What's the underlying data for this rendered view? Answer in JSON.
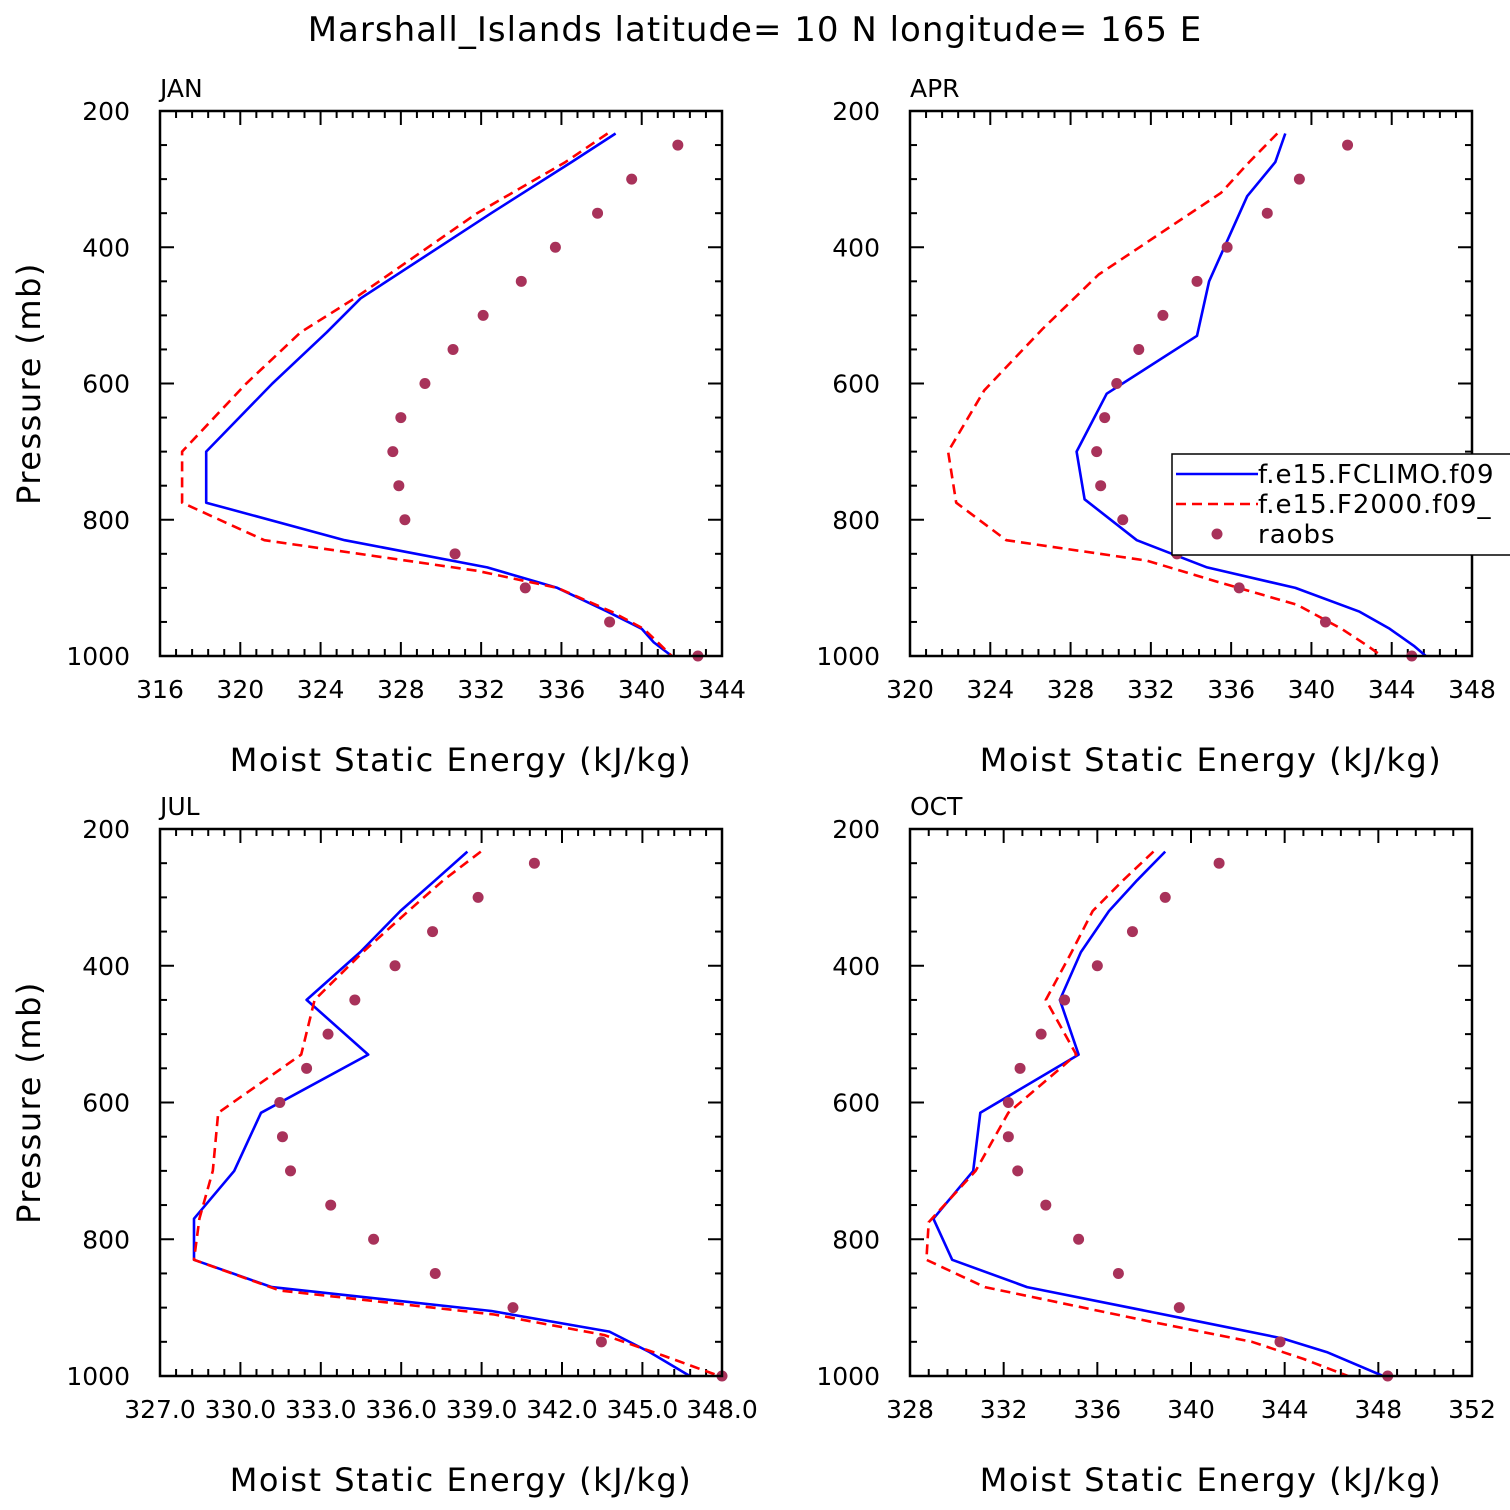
{
  "figure": {
    "title": "Marshall_Islands   latitude= 10 N longitude= 165 E"
  },
  "legend": {
    "entries": [
      {
        "name": "f.e15.FCLIMO.f09",
        "style": "solid",
        "color": "#0000ff"
      },
      {
        "name": "f.e15.F2000.f09_",
        "style": "dashed",
        "color": "#ff0000"
      },
      {
        "name": "raobs",
        "style": "marker",
        "color": "#a8325a"
      }
    ]
  },
  "chart_data": [
    {
      "type": "line",
      "title": "JAN",
      "xlabel": "Moist Static Energy (kJ/kg)",
      "ylabel": "Pressure (mb)",
      "xlim": [
        316,
        344
      ],
      "ylim": [
        1000,
        200
      ],
      "xticks": [
        316,
        320,
        324,
        328,
        332,
        336,
        340,
        344
      ],
      "xtick_labels": [
        "316",
        "320",
        "324",
        "328",
        "332",
        "336",
        "340",
        "344"
      ],
      "yticks": [
        200,
        400,
        600,
        800,
        1000
      ],
      "ytick_labels": [
        "200",
        "400",
        "600",
        "800",
        "1000"
      ],
      "show_ylabel": true,
      "series": [
        {
          "name": "f.e15.FCLIMO.f09",
          "style": "solid",
          "x": [
            338.7,
            336.5,
            332.5,
            326.0,
            324.3,
            321.6,
            318.3,
            318.3,
            325.2,
            332.3,
            335.8,
            338.3,
            340.0,
            340.6,
            341.5
          ],
          "y": [
            233,
            275,
            350,
            475,
            525,
            600,
            700,
            775,
            830,
            870,
            900,
            935,
            960,
            980,
            1000
          ]
        },
        {
          "name": "f.e15.F2000.f09_",
          "style": "dashed",
          "x": [
            338.3,
            336.2,
            331.8,
            325.7,
            323.0,
            320.3,
            317.1,
            317.1,
            321.2,
            331.8,
            335.8,
            338.5,
            340.1,
            340.8,
            341.5
          ],
          "y": [
            233,
            275,
            350,
            475,
            525,
            600,
            700,
            775,
            830,
            875,
            900,
            935,
            960,
            980,
            1000
          ]
        },
        {
          "name": "raobs",
          "style": "marker",
          "x": [
            341.8,
            339.5,
            337.8,
            335.7,
            334.0,
            332.1,
            330.6,
            329.2,
            328.0,
            327.6,
            327.9,
            328.2,
            330.7,
            334.2,
            338.4,
            342.8
          ],
          "y": [
            250,
            300,
            350,
            400,
            450,
            500,
            550,
            600,
            650,
            700,
            750,
            800,
            850,
            900,
            950,
            1000
          ]
        }
      ]
    },
    {
      "type": "line",
      "title": "APR",
      "xlabel": "Moist Static Energy (kJ/kg)",
      "ylabel": "",
      "xlim": [
        320,
        348
      ],
      "ylim": [
        1000,
        200
      ],
      "xticks": [
        320,
        324,
        328,
        332,
        336,
        340,
        344,
        348
      ],
      "xtick_labels": [
        "320",
        "324",
        "328",
        "332",
        "336",
        "340",
        "344",
        "348"
      ],
      "yticks": [
        200,
        400,
        600,
        800,
        1000
      ],
      "ytick_labels": [
        "200",
        "400",
        "600",
        "800",
        "1000"
      ],
      "show_ylabel": false,
      "series": [
        {
          "name": "f.e15.FCLIMO.f09",
          "style": "solid",
          "x": [
            338.7,
            338.2,
            336.8,
            334.9,
            334.3,
            329.8,
            328.3,
            328.7,
            331.3,
            334.8,
            339.2,
            342.4,
            343.9,
            345.1,
            345.7
          ],
          "y": [
            233,
            275,
            325,
            450,
            530,
            615,
            700,
            770,
            830,
            870,
            900,
            935,
            960,
            985,
            1000
          ]
        },
        {
          "name": "f.e15.F2000.f09_",
          "style": "dashed",
          "x": [
            338.3,
            336.9,
            335.5,
            329.4,
            326.6,
            323.7,
            321.9,
            322.3,
            324.8,
            331.8,
            335.2,
            339.3,
            341.5,
            342.8,
            343.5
          ],
          "y": [
            233,
            275,
            320,
            440,
            520,
            610,
            700,
            775,
            830,
            860,
            890,
            925,
            960,
            985,
            1000
          ]
        },
        {
          "name": "raobs",
          "style": "marker",
          "x": [
            341.8,
            339.4,
            337.8,
            335.8,
            334.3,
            332.6,
            331.4,
            330.3,
            329.7,
            329.3,
            329.5,
            330.6,
            333.3,
            336.4,
            340.7,
            345.0
          ],
          "y": [
            250,
            300,
            350,
            400,
            450,
            500,
            550,
            600,
            650,
            700,
            750,
            800,
            850,
            900,
            950,
            1000
          ]
        }
      ]
    },
    {
      "type": "line",
      "title": "JUL",
      "xlabel": "Moist Static Energy (kJ/kg)",
      "ylabel": "Pressure (mb)",
      "xlim": [
        327.03,
        348.0
      ],
      "ylim": [
        1000,
        200
      ],
      "xticks": [
        327.03,
        330.03,
        333.03,
        336.03,
        339.03,
        342.03,
        345.03,
        348.0
      ],
      "xtick_labels": [
        "327.0",
        "330.0",
        "333.0",
        "336.0",
        "339.0",
        "342.0",
        "345.0",
        "348.0"
      ],
      "yticks": [
        200,
        400,
        600,
        800,
        1000
      ],
      "ytick_labels": [
        "200",
        "400",
        "600",
        "800",
        "1000"
      ],
      "show_ylabel": true,
      "series": [
        {
          "name": "f.e15.FCLIMO.f09",
          "style": "solid",
          "x": [
            338.5,
            337.3,
            336.0,
            334.5,
            332.5,
            334.8,
            330.8,
            329.8,
            328.3,
            328.3,
            331.2,
            339.4,
            343.8,
            345.3,
            346.8
          ],
          "y": [
            233,
            275,
            320,
            380,
            450,
            530,
            615,
            700,
            770,
            830,
            870,
            905,
            935,
            965,
            1000
          ]
        },
        {
          "name": "f.e15.F2000.f09_",
          "style": "dashed",
          "x": [
            339.0,
            337.6,
            336.3,
            334.6,
            332.8,
            332.3,
            329.2,
            329.0,
            328.5,
            328.3,
            331.5,
            339.5,
            343.6,
            345.8,
            347.9
          ],
          "y": [
            233,
            275,
            320,
            380,
            450,
            530,
            615,
            700,
            770,
            830,
            875,
            910,
            940,
            970,
            1000
          ]
        },
        {
          "name": "raobs",
          "style": "marker",
          "x": [
            341.0,
            338.9,
            337.2,
            335.8,
            334.3,
            333.3,
            332.5,
            331.5,
            331.6,
            331.9,
            333.4,
            335.0,
            337.3,
            340.2,
            343.5,
            348.0
          ],
          "y": [
            250,
            300,
            350,
            400,
            450,
            500,
            550,
            600,
            650,
            700,
            750,
            800,
            850,
            900,
            950,
            1000
          ]
        }
      ]
    },
    {
      "type": "line",
      "title": "OCT",
      "xlabel": "Moist Static Energy (kJ/kg)",
      "ylabel": "",
      "xlim": [
        328,
        352
      ],
      "ylim": [
        1000,
        200
      ],
      "xticks": [
        328,
        332,
        336,
        340,
        344,
        348,
        352
      ],
      "xtick_labels": [
        "328",
        "332",
        "336",
        "340",
        "344",
        "348",
        "352"
      ],
      "yticks": [
        200,
        400,
        600,
        800,
        1000
      ],
      "ytick_labels": [
        "200",
        "400",
        "600",
        "800",
        "1000"
      ],
      "show_ylabel": false,
      "series": [
        {
          "name": "f.e15.FCLIMO.f09",
          "style": "solid",
          "x": [
            338.9,
            337.7,
            336.5,
            335.3,
            334.4,
            335.2,
            331.0,
            330.7,
            329.0,
            329.8,
            333.0,
            340.3,
            343.9,
            345.8,
            348.2
          ],
          "y": [
            233,
            275,
            320,
            380,
            450,
            530,
            615,
            700,
            770,
            830,
            870,
            920,
            945,
            965,
            1000
          ]
        },
        {
          "name": "f.e15.F2000.f09_",
          "style": "dashed",
          "x": [
            338.4,
            337.1,
            335.8,
            334.9,
            333.8,
            335.1,
            332.2,
            330.8,
            328.8,
            328.7,
            331.2,
            338.2,
            342.6,
            344.8,
            346.7
          ],
          "y": [
            233,
            275,
            320,
            380,
            450,
            530,
            615,
            700,
            775,
            830,
            870,
            920,
            950,
            975,
            1000
          ]
        },
        {
          "name": "raobs",
          "style": "marker",
          "x": [
            341.2,
            338.9,
            337.5,
            336.0,
            334.6,
            333.6,
            332.7,
            332.2,
            332.2,
            332.6,
            333.8,
            335.2,
            336.9,
            339.5,
            343.8,
            348.4
          ],
          "y": [
            250,
            300,
            350,
            400,
            450,
            500,
            550,
            600,
            650,
            700,
            750,
            800,
            850,
            900,
            950,
            1000
          ]
        }
      ]
    }
  ]
}
